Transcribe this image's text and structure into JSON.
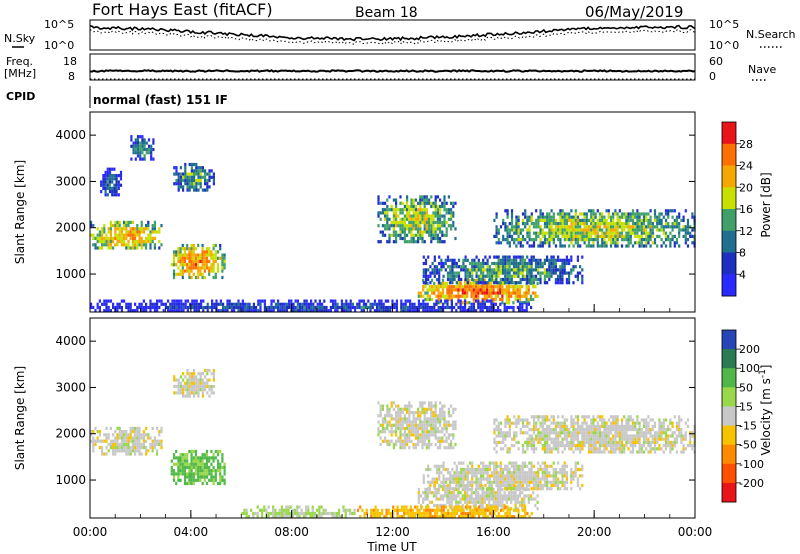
{
  "header": {
    "station": "Fort Hays East (fitACF)",
    "beam": "Beam 18",
    "date": "06/May/2019"
  },
  "aux": {
    "nsky_label": "N.Sky",
    "nsearch_label": "N.Search",
    "freq_label_line1": "Freq.",
    "freq_label_line2": "[MHz]",
    "nave_label": "Nave",
    "cpid_label": "CPID",
    "noise_ticks_left": [
      "10^5",
      "10^0"
    ],
    "noise_ticks_right": [
      "10^5",
      "10^0"
    ],
    "freq_ticks_left": [
      "18",
      "8"
    ],
    "nave_ticks_right": [
      "60",
      "0"
    ],
    "cpid_text": "normal (fast) 151 IF"
  },
  "chart_data": [
    {
      "type": "heatmap",
      "name": "power",
      "ylabel": "Slant Range [km]",
      "yticks": [
        "4000",
        "3000",
        "2000",
        "1000"
      ],
      "ylim": [
        180,
        4500
      ],
      "xlim": [
        0,
        24
      ],
      "colorbar_label": "Power [dB]",
      "colorbar_ticks": [
        "28",
        "24",
        "20",
        "16",
        "12",
        "8",
        "4"
      ],
      "colorbar_colors": [
        "#e8141a",
        "#ff7000",
        "#f5a800",
        "#c8e000",
        "#3fa06a",
        "#1f6f8e",
        "#1c2fbf",
        "#2a2aff"
      ],
      "features": [
        {
          "t0": 0.0,
          "t1": 2.8,
          "r0": 1550,
          "r1": 2150,
          "level": 22
        },
        {
          "t0": 0.4,
          "t1": 1.2,
          "r0": 2700,
          "r1": 3300,
          "level": 10
        },
        {
          "t0": 1.6,
          "t1": 2.5,
          "r0": 3500,
          "r1": 4000,
          "level": 12
        },
        {
          "t0": 3.3,
          "t1": 4.9,
          "r0": 2800,
          "r1": 3400,
          "level": 14
        },
        {
          "t0": 3.2,
          "t1": 5.3,
          "r0": 900,
          "r1": 1650,
          "level": 24
        },
        {
          "t0": 11.4,
          "t1": 14.5,
          "r0": 1700,
          "r1": 2700,
          "level": 18
        },
        {
          "t0": 13.0,
          "t1": 17.8,
          "r0": 400,
          "r1": 900,
          "level": 26
        },
        {
          "t0": 13.2,
          "t1": 19.5,
          "r0": 800,
          "r1": 1400,
          "level": 14
        },
        {
          "t0": 16.0,
          "t1": 24.0,
          "r0": 1600,
          "r1": 2400,
          "level": 18
        },
        {
          "t0": 0.0,
          "t1": 17.5,
          "r0": 180,
          "r1": 450,
          "level": 8
        }
      ]
    },
    {
      "type": "heatmap",
      "name": "velocity",
      "ylabel": "Slant Range [km]",
      "yticks": [
        "4000",
        "3000",
        "2000",
        "1000"
      ],
      "ylim": [
        180,
        4500
      ],
      "xlim": [
        0,
        24
      ],
      "xticks": [
        "00:00",
        "04:00",
        "08:00",
        "12:00",
        "16:00",
        "20:00",
        "00:00"
      ],
      "xlabel": "Time UT",
      "colorbar_label": "Velocity [m s^-1]",
      "colorbar_ticks": [
        "200",
        "100",
        "50",
        "15",
        "-15",
        "-50",
        "-100",
        "-200"
      ],
      "colorbar_colors": [
        "#2845b8",
        "#2a7a52",
        "#4fb848",
        "#98d84a",
        "#c8c8c8",
        "#f5c300",
        "#ff8a00",
        "#ff5000",
        "#e8141a"
      ],
      "features": [
        {
          "t0": 0.0,
          "t1": 2.8,
          "r0": 1550,
          "r1": 2150,
          "level": 0
        },
        {
          "t0": 3.3,
          "t1": 4.9,
          "r0": 2800,
          "r1": 3400,
          "level": 0
        },
        {
          "t0": 3.2,
          "t1": 5.3,
          "r0": 900,
          "r1": 1650,
          "level": 60
        },
        {
          "t0": 11.4,
          "t1": 14.5,
          "r0": 1700,
          "r1": 2700,
          "level": 0
        },
        {
          "t0": 13.0,
          "t1": 17.8,
          "r0": 400,
          "r1": 900,
          "level": 0
        },
        {
          "t0": 13.2,
          "t1": 19.5,
          "r0": 800,
          "r1": 1400,
          "level": 0
        },
        {
          "t0": 16.0,
          "t1": 24.0,
          "r0": 1600,
          "r1": 2400,
          "level": 0
        },
        {
          "t0": 6.0,
          "t1": 10.5,
          "r0": 180,
          "r1": 450,
          "level": 20
        },
        {
          "t0": 10.5,
          "t1": 17.5,
          "r0": 180,
          "r1": 450,
          "level": -40
        }
      ]
    }
  ]
}
